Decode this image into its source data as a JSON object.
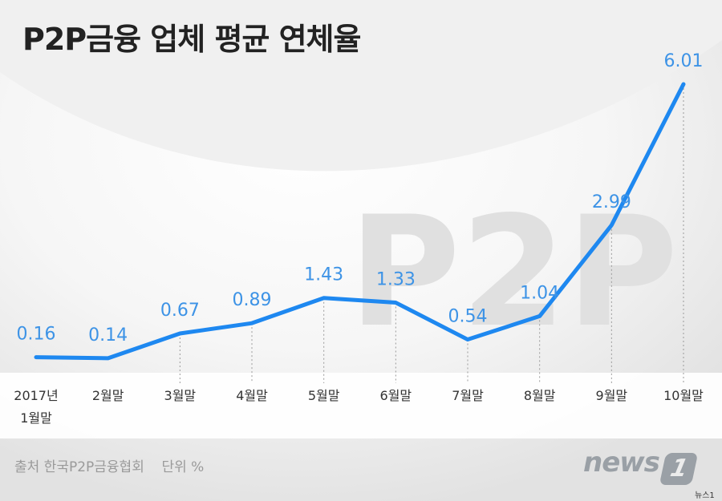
{
  "title": "P2P금융 업체 평균 연체율",
  "watermark": "P2P",
  "source": "출처 한국P2P금융협회    단위 %",
  "logo": {
    "text": "news",
    "badge": "1"
  },
  "credit": "뉴스1",
  "colors": {
    "line": "#1e88f0",
    "label": "#3d93e6",
    "axis_text": "#333333",
    "background": "#ececec"
  },
  "chart_data": {
    "type": "line",
    "title": "P2P금융 업체 평균 연체율",
    "categories": [
      "2017년\n1월말",
      "2월말",
      "3월말",
      "4월말",
      "5월말",
      "6월말",
      "7월말",
      "8월말",
      "9월말",
      "10월말"
    ],
    "series": [
      {
        "name": "평균 연체율",
        "values": [
          0.16,
          0.14,
          0.67,
          0.89,
          1.43,
          1.33,
          0.54,
          1.04,
          2.99,
          6.01
        ]
      }
    ],
    "data_labels": [
      "0.16",
      "0.14",
      "0.67",
      "0.89",
      "1.43",
      "1.33",
      "0.54",
      "1.04",
      "2.99",
      "6.01"
    ],
    "unit": "%",
    "xlabel": "",
    "ylabel": "",
    "ylim": [
      0,
      6.2
    ]
  }
}
